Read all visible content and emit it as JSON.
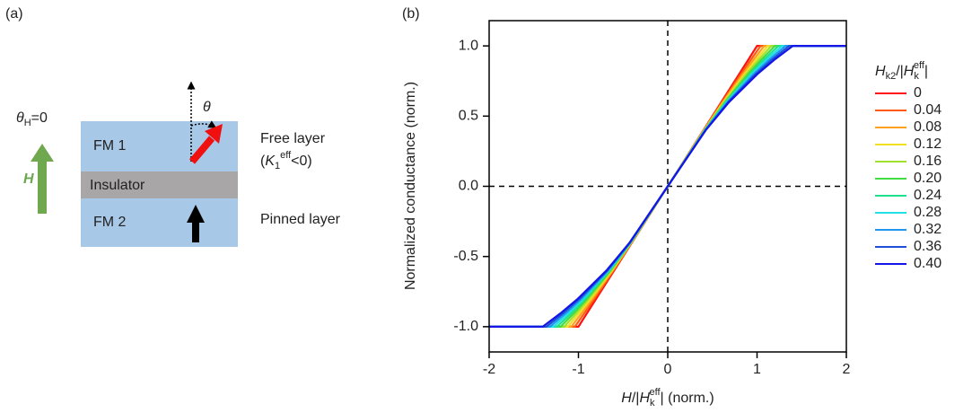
{
  "panel_labels": [
    "(a)",
    "(b)"
  ],
  "diagram": {
    "field_angle": [
      "θ",
      "H",
      "=0"
    ],
    "field_label": "H",
    "layers": [
      "FM 1",
      "Insulator",
      "FM 2"
    ],
    "angle_label": "θ",
    "free_layer": "Free layer",
    "free_layer_condition": [
      "(",
      "K",
      "1",
      "eff",
      "<0)"
    ],
    "pinned_layer": "Pinned layer"
  },
  "chart_data": {
    "type": "line",
    "y_label": "Normalized conductance (norm.)",
    "x_label": [
      "H",
      "/|",
      "H",
      "k",
      "eff",
      "| (norm.)"
    ],
    "legend_title": [
      "H",
      "k2",
      "/|",
      "H",
      "k",
      "eff",
      "|"
    ],
    "xlim": [
      -2,
      2
    ],
    "xticks": [
      -2,
      -1,
      0,
      1,
      2
    ],
    "ylim": [
      -1.18,
      1.18
    ],
    "yticks": [
      {
        "value": -1,
        "label": "-1.0"
      },
      {
        "value": -0.5,
        "label": "-0.5"
      },
      {
        "value": 0,
        "label": "0.0"
      },
      {
        "value": 0.5,
        "label": "0.5"
      },
      {
        "value": 1,
        "label": "1.0"
      }
    ],
    "xline": 0,
    "yline": 0,
    "series": [
      {
        "name": "0",
        "color": "#ff1010",
        "x": [
          -2,
          -1,
          -0.9,
          -0.8,
          -0.6,
          -0.4,
          0,
          0.4,
          0.6,
          0.8,
          0.9,
          1,
          2
        ],
        "values": [
          -1,
          -1,
          -0.9,
          -0.8,
          -0.6,
          -0.4,
          0,
          0.4,
          0.6,
          0.8,
          0.9,
          1,
          1
        ]
      },
      {
        "name": "0.04",
        "color": "#ff5a10",
        "x": [
          -2,
          -1.04,
          -0.9292,
          -0.8205,
          -0.6086,
          -0.4026,
          0,
          0.4026,
          0.6086,
          0.8205,
          0.9292,
          1.04,
          2
        ],
        "values": [
          -1,
          -1,
          -0.9,
          -0.8,
          -0.6,
          -0.4,
          0,
          0.4,
          0.6,
          0.8,
          0.9,
          1,
          1
        ]
      },
      {
        "name": "0.08",
        "color": "#ffa020",
        "x": [
          -2,
          -1.08,
          -0.9583,
          -0.841,
          -0.6173,
          -0.4051,
          0,
          0.4051,
          0.6173,
          0.841,
          0.9583,
          1.08,
          2
        ],
        "values": [
          -1,
          -1,
          -0.9,
          -0.8,
          -0.6,
          -0.4,
          0,
          0.4,
          0.6,
          0.8,
          0.9,
          1,
          1
        ]
      },
      {
        "name": "0.12",
        "color": "#f0e020",
        "x": [
          -2,
          -1.12,
          -0.9875,
          -0.8614,
          -0.6259,
          -0.4077,
          0,
          0.4077,
          0.6259,
          0.8614,
          0.9875,
          1.12,
          2
        ],
        "values": [
          -1,
          -1,
          -0.9,
          -0.8,
          -0.6,
          -0.4,
          0,
          0.4,
          0.6,
          0.8,
          0.9,
          1,
          1
        ]
      },
      {
        "name": "0.16",
        "color": "#a0e030",
        "x": [
          -2,
          -1.16,
          -1.0166,
          -0.8819,
          -0.6346,
          -0.4102,
          0,
          0.4102,
          0.6346,
          0.8819,
          1.0166,
          1.16,
          2
        ],
        "values": [
          -1,
          -1,
          -0.9,
          -0.8,
          -0.6,
          -0.4,
          0,
          0.4,
          0.6,
          0.8,
          0.9,
          1,
          1
        ]
      },
      {
        "name": "0.20",
        "color": "#40dc40",
        "x": [
          -2,
          -1.2,
          -1.0458,
          -0.9024,
          -0.6432,
          -0.4128,
          0,
          0.4128,
          0.6432,
          0.9024,
          1.0458,
          1.2,
          2
        ],
        "values": [
          -1,
          -1,
          -0.9,
          -0.8,
          -0.6,
          -0.4,
          0,
          0.4,
          0.6,
          0.8,
          0.9,
          1,
          1
        ]
      },
      {
        "name": "0.24",
        "color": "#20e090",
        "x": [
          -2,
          -1.24,
          -1.075,
          -0.9229,
          -0.6518,
          -0.4154,
          0,
          0.4154,
          0.6518,
          0.9229,
          1.075,
          1.24,
          2
        ],
        "values": [
          -1,
          -1,
          -0.9,
          -0.8,
          -0.6,
          -0.4,
          0,
          0.4,
          0.6,
          0.8,
          0.9,
          1,
          1
        ]
      },
      {
        "name": "0.28",
        "color": "#20e0e8",
        "x": [
          -2,
          -1.28,
          -1.1041,
          -0.9434,
          -0.6605,
          -0.4179,
          0,
          0.4179,
          0.6605,
          0.9434,
          1.1041,
          1.28,
          2
        ],
        "values": [
          -1,
          -1,
          -0.9,
          -0.8,
          -0.6,
          -0.4,
          0,
          0.4,
          0.6,
          0.8,
          0.9,
          1,
          1
        ]
      },
      {
        "name": "0.32",
        "color": "#2098f0",
        "x": [
          -2,
          -1.32,
          -1.1333,
          -0.9638,
          -0.6691,
          -0.4205,
          0,
          0.4205,
          0.6691,
          0.9638,
          1.1333,
          1.32,
          2
        ],
        "values": [
          -1,
          -1,
          -0.9,
          -0.8,
          -0.6,
          -0.4,
          0,
          0.4,
          0.6,
          0.8,
          0.9,
          1,
          1
        ]
      },
      {
        "name": "0.36",
        "color": "#1f4fd8",
        "x": [
          -2,
          -1.36,
          -1.1624,
          -0.9843,
          -0.6778,
          -0.423,
          0,
          0.423,
          0.6778,
          0.9843,
          1.1624,
          1.36,
          2
        ],
        "values": [
          -1,
          -1,
          -0.9,
          -0.8,
          -0.6,
          -0.4,
          0,
          0.4,
          0.6,
          0.8,
          0.9,
          1,
          1
        ]
      },
      {
        "name": "0.40",
        "color": "#1515e6",
        "x": [
          -2,
          -1.4,
          -1.1916,
          -1.0048,
          -0.6864,
          -0.4256,
          0,
          0.4256,
          0.6864,
          1.0048,
          1.1916,
          1.4,
          2
        ],
        "values": [
          -1,
          -1,
          -0.9,
          -0.8,
          -0.6,
          -0.4,
          0,
          0.4,
          0.6,
          0.8,
          0.9,
          1,
          1
        ]
      }
    ]
  }
}
